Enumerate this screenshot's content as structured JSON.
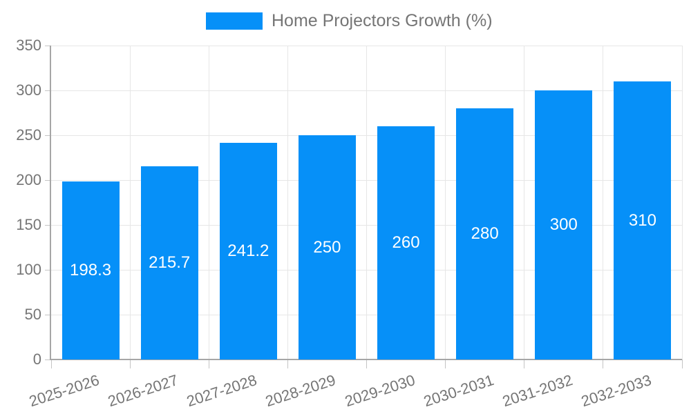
{
  "chart_data": {
    "type": "bar",
    "title": "Home Projectors Growth (%)",
    "legend": {
      "position": "top",
      "entries": [
        {
          "label": "Home Projectors Growth (%)",
          "color": "#0690f8"
        }
      ]
    },
    "categories": [
      "2025-2026",
      "2026-2027",
      "2027-2028",
      "2028-2029",
      "2029-2030",
      "2030-2031",
      "2031-2032",
      "2032-2033"
    ],
    "values": [
      198.3,
      215.7,
      241.2,
      250,
      260,
      280,
      300,
      310
    ],
    "value_labels": [
      "198.3",
      "215.7",
      "241.2",
      "250",
      "260",
      "280",
      "300",
      "310"
    ],
    "xlabel": "",
    "ylabel": "",
    "ylim": [
      0,
      350
    ],
    "yticks": [
      0,
      50,
      100,
      150,
      200,
      250,
      300,
      350
    ],
    "grid": true,
    "x_label_rotation_deg": -18,
    "colors": {
      "bar": "#0690f8",
      "bar_label_text": "#ffffff",
      "axis_text": "#757575",
      "axis_line": "#a6a6a6",
      "gridline": "#e6e6e6",
      "tick_mark": "#c4c4c4",
      "background": "#ffffff"
    }
  }
}
